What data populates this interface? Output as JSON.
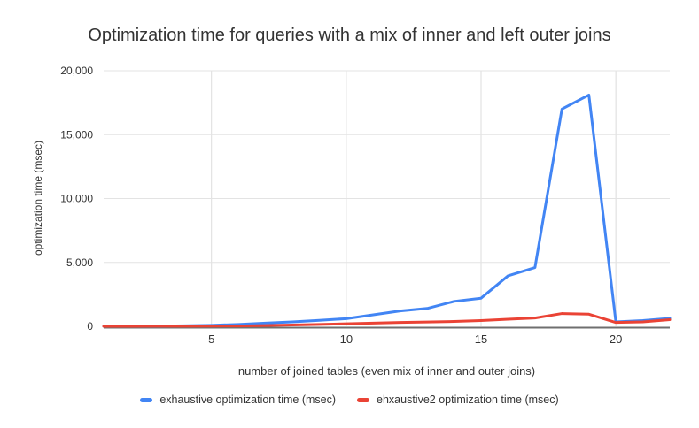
{
  "chart_data": {
    "type": "line",
    "title": "Optimization time for queries with a mix of inner and left outer joins",
    "xlabel": "number of joined tables (even mix of inner and outer joins)",
    "ylabel": "optimization time (msec)",
    "xlim": [
      1,
      22
    ],
    "ylim": [
      0,
      20000
    ],
    "grid": true,
    "legend_position": "bottom",
    "x_ticks": [
      5,
      10,
      15,
      20
    ],
    "y_ticks": [
      {
        "value": 0,
        "label": "0"
      },
      {
        "value": 5000,
        "label": "5,000"
      },
      {
        "value": 10000,
        "label": "10,000"
      },
      {
        "value": 15000,
        "label": "15,000"
      },
      {
        "value": 20000,
        "label": "20,000"
      }
    ],
    "x": [
      1,
      2,
      3,
      4,
      5,
      6,
      7,
      8,
      9,
      10,
      11,
      12,
      13,
      14,
      15,
      16,
      17,
      18,
      19,
      20,
      21,
      22
    ],
    "series": [
      {
        "name": "exhaustive optimization time (msec)",
        "color": "#4285F4",
        "values": [
          5,
          10,
          20,
          40,
          80,
          150,
          250,
          350,
          470,
          600,
          900,
          1200,
          1400,
          1950,
          2200,
          3950,
          4600,
          17000,
          18100,
          350,
          450,
          620
        ]
      },
      {
        "name": "ehxaustive2 optimization time (msec)",
        "color": "#EA4335",
        "values": [
          2,
          3,
          5,
          8,
          15,
          30,
          60,
          100,
          150,
          200,
          250,
          300,
          340,
          380,
          450,
          550,
          650,
          1000,
          950,
          300,
          350,
          520
        ]
      }
    ]
  }
}
